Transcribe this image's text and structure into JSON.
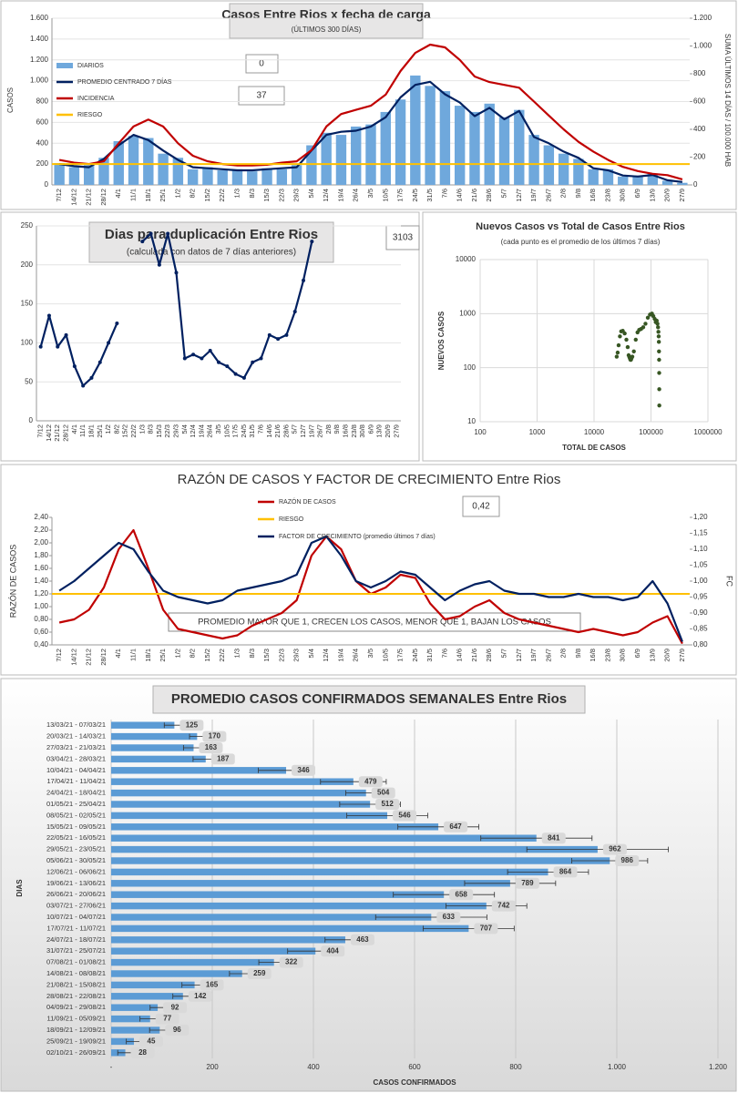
{
  "chart_data": [
    {
      "type": "combo",
      "title": "Casos Entre Rios x fecha de carga",
      "subtitle": "(ÚLTIMOS 300 DÍAS)",
      "ylabel": "CASOS",
      "y2label": "SUMA ÚLTIMOS 14 DÍAS / 100.000 HAB",
      "annotations": [
        "0",
        "37"
      ],
      "grid": true,
      "categories": [
        "7/12",
        "14/12",
        "21/12",
        "28/12",
        "4/1",
        "11/1",
        "18/1",
        "25/1",
        "1/2",
        "8/2",
        "15/2",
        "22/2",
        "1/3",
        "8/3",
        "15/3",
        "22/3",
        "29/3",
        "5/4",
        "12/4",
        "19/4",
        "26/4",
        "3/5",
        "10/5",
        "17/5",
        "24/5",
        "31/5",
        "7/6",
        "14/6",
        "21/6",
        "28/6",
        "5/7",
        "12/7",
        "19/7",
        "26/7",
        "2/8",
        "9/8",
        "16/8",
        "23/8",
        "30/8",
        "6/9",
        "13/9",
        "20/9",
        "27/9"
      ],
      "ylim": [
        0,
        1600
      ],
      "yticks": [
        0,
        200,
        400,
        600,
        800,
        {
          "value": 1000,
          "label": "1.000"
        },
        {
          "value": 1200,
          "label": "1.200"
        },
        {
          "value": 1400,
          "label": "1.400"
        },
        {
          "value": 1600,
          "label": "1.600"
        }
      ],
      "y2lim": [
        0,
        1200
      ],
      "y2ticks": [
        0,
        200,
        400,
        600,
        800,
        {
          "value": 1000,
          "label": "1.000"
        },
        {
          "value": 1200,
          "label": "1.200"
        }
      ],
      "series": [
        {
          "name": "DIARIOS",
          "kind": "bar",
          "color": "#6fa8dc",
          "values": [
            210,
            170,
            190,
            260,
            420,
            470,
            450,
            300,
            260,
            150,
            170,
            140,
            150,
            130,
            160,
            150,
            190,
            380,
            500,
            480,
            560,
            580,
            700,
            820,
            1050,
            950,
            900,
            760,
            700,
            780,
            650,
            720,
            480,
            380,
            300,
            250,
            150,
            150,
            80,
            90,
            110,
            40,
            20
          ]
        },
        {
          "name": "PROMEDIO CENTRADO 7 DÍAS",
          "color": "#002060",
          "values": [
            200,
            180,
            170,
            250,
            380,
            480,
            430,
            330,
            240,
            170,
            160,
            150,
            140,
            140,
            150,
            160,
            170,
            330,
            480,
            510,
            520,
            560,
            650,
            840,
            960,
            990,
            870,
            790,
            660,
            740,
            630,
            710,
            460,
            400,
            320,
            260,
            160,
            140,
            90,
            80,
            95,
            45,
            28
          ]
        },
        {
          "name": "INCIDENCIA",
          "color": "#c00000",
          "axis": "y2",
          "values": [
            180,
            160,
            150,
            170,
            300,
            420,
            470,
            420,
            300,
            210,
            170,
            150,
            140,
            140,
            145,
            160,
            170,
            250,
            420,
            510,
            540,
            570,
            650,
            820,
            950,
            1010,
            990,
            900,
            780,
            740,
            720,
            700,
            600,
            500,
            400,
            310,
            240,
            180,
            130,
            100,
            80,
            70,
            40
          ]
        },
        {
          "name": "RIESGO",
          "color": "#ffc000",
          "axis": "y2",
          "value": 150
        }
      ]
    },
    {
      "type": "line",
      "title": "Dias para duplicación Entre Rios",
      "subtitle": "(calculada con datos de 7 días anteriores)",
      "annotations": [
        "3103"
      ],
      "grid": true,
      "markers": true,
      "categories": [
        "7/12",
        "14/12",
        "21/12",
        "28/12",
        "4/1",
        "11/1",
        "18/1",
        "25/1",
        "1/2",
        "8/2",
        "15/2",
        "22/2",
        "1/3",
        "8/3",
        "15/3",
        "22/3",
        "29/3",
        "5/4",
        "12/4",
        "19/4",
        "26/4",
        "3/5",
        "10/5",
        "17/5",
        "24/5",
        "31/5",
        "7/6",
        "14/6",
        "21/6",
        "28/6",
        "5/7",
        "12/7",
        "19/7",
        "26/7",
        "2/8",
        "9/8",
        "16/8",
        "23/8",
        "30/8",
        "6/9",
        "13/9",
        "20/9",
        "27/9"
      ],
      "ylim": [
        0,
        250
      ],
      "yticks": [
        0,
        50,
        100,
        150,
        200,
        250
      ],
      "series": [
        {
          "color": "#002060",
          "values": [
            95,
            135,
            95,
            110,
            70,
            45,
            55,
            75,
            100,
            125,
            null,
            null,
            230,
            240,
            200,
            240,
            190,
            80,
            85,
            80,
            90,
            75,
            70,
            60,
            55,
            75,
            80,
            110,
            105,
            110,
            140,
            180,
            230,
            null,
            null,
            null,
            null,
            null,
            null,
            null,
            null,
            null,
            null
          ]
        }
      ]
    },
    {
      "type": "scatter",
      "title": "Nuevos Casos vs Total de Casos Entre Rios",
      "subtitle": "(cada punto es el promedio de los últimos 7 días)",
      "xlabel": "TOTAL DE CASOS",
      "ylabel": "NUEVOS CASOS",
      "log_x": true,
      "log_y": true,
      "grid": true,
      "color": "#375623",
      "xlim": [
        100,
        1000000
      ],
      "xticks": [
        100,
        1000,
        10000,
        100000,
        1000000
      ],
      "ylim": [
        10,
        10000
      ],
      "yticks": [
        10,
        100,
        1000,
        10000
      ],
      "x": [
        25000,
        26000,
        27000,
        28500,
        30000,
        32000,
        34500,
        37000,
        39000,
        40500,
        41500,
        42500,
        43500,
        44500,
        45500,
        47000,
        50000,
        54000,
        58000,
        62000,
        67000,
        73000,
        80000,
        88000,
        96000,
        104000,
        110000,
        116000,
        121000,
        126000,
        130000,
        133000,
        135000,
        136500,
        137500,
        138200,
        138800,
        139300,
        139700,
        140000
      ],
      "values": [
        160,
        190,
        260,
        380,
        470,
        480,
        430,
        330,
        240,
        170,
        160,
        150,
        140,
        140,
        150,
        160,
        200,
        330,
        450,
        500,
        520,
        560,
        650,
        840,
        960,
        1000,
        900,
        800,
        700,
        740,
        650,
        560,
        460,
        380,
        300,
        200,
        140,
        80,
        40,
        20
      ]
    },
    {
      "type": "combo",
      "title": "RAZÓN DE CASOS Y FACTOR DE CRECIMIENTO Entre Rios",
      "ylabel": "RAZÓN DE CASOS",
      "y2label": "FC",
      "annotations": [
        "0,42",
        "PROMEDIO MAYOR QUE 1, CRECEN LOS CASOS, MENOR QUE 1, BAJAN LOS CASOS"
      ],
      "grid": false,
      "categories": [
        "7/12",
        "14/12",
        "21/12",
        "28/12",
        "4/1",
        "11/1",
        "18/1",
        "25/1",
        "1/2",
        "8/2",
        "15/2",
        "22/2",
        "1/3",
        "8/3",
        "15/3",
        "22/3",
        "29/3",
        "5/4",
        "12/4",
        "19/4",
        "26/4",
        "3/5",
        "10/5",
        "17/5",
        "24/5",
        "31/5",
        "7/6",
        "14/6",
        "21/6",
        "28/6",
        "5/7",
        "12/7",
        "19/7",
        "26/7",
        "2/8",
        "9/8",
        "16/8",
        "23/8",
        "30/8",
        "6/9",
        "13/9",
        "20/9",
        "27/9"
      ],
      "ylim": [
        0.4,
        2.4
      ],
      "yticks": [
        {
          "value": 0.4,
          "label": "0,40"
        },
        {
          "value": 0.6,
          "label": "0,60"
        },
        {
          "value": 0.8,
          "label": "0,80"
        },
        {
          "value": 1.0,
          "label": "1,00"
        },
        {
          "value": 1.2,
          "label": "1,20"
        },
        {
          "value": 1.4,
          "label": "1,40"
        },
        {
          "value": 1.6,
          "label": "1,60"
        },
        {
          "value": 1.8,
          "label": "1,80"
        },
        {
          "value": 2.0,
          "label": "2,00"
        },
        {
          "value": 2.2,
          "label": "2,20"
        },
        {
          "value": 2.4,
          "label": "2,40"
        }
      ],
      "y2lim": [
        0.8,
        1.2
      ],
      "y2ticks": [
        {
          "value": 0.8,
          "label": "0,80"
        },
        {
          "value": 0.85,
          "label": "0,85"
        },
        {
          "value": 0.9,
          "label": "0,90"
        },
        {
          "value": 0.95,
          "label": "0,95"
        },
        {
          "value": 1.0,
          "label": "1,00"
        },
        {
          "value": 1.05,
          "label": "1,05"
        },
        {
          "value": 1.1,
          "label": "1,10"
        },
        {
          "value": 1.15,
          "label": "1,15"
        },
        {
          "value": 1.2,
          "label": "1,20"
        }
      ],
      "series": [
        {
          "name": "RAZÓN DE CASOS",
          "color": "#c00000",
          "values": [
            0.75,
            0.8,
            0.95,
            1.3,
            1.9,
            2.2,
            1.6,
            0.95,
            0.65,
            0.6,
            0.55,
            0.5,
            0.55,
            0.7,
            0.8,
            0.9,
            1.1,
            1.8,
            2.1,
            1.9,
            1.4,
            1.2,
            1.3,
            1.5,
            1.45,
            1.05,
            0.8,
            0.85,
            1.0,
            1.1,
            0.9,
            0.8,
            0.75,
            0.7,
            0.65,
            0.6,
            0.65,
            0.6,
            0.55,
            0.6,
            0.75,
            0.85,
            0.42
          ]
        },
        {
          "name": "RIESGO",
          "color": "#ffc000",
          "value": 1.2
        },
        {
          "name": "FACTOR DE CRECIMIENTO (promedio últimos 7 días)",
          "color": "#002060",
          "axis": "y2",
          "values": [
            0.97,
            1.0,
            1.04,
            1.08,
            1.12,
            1.1,
            1.03,
            0.97,
            0.95,
            0.94,
            0.93,
            0.94,
            0.97,
            0.98,
            0.99,
            1.0,
            1.02,
            1.12,
            1.14,
            1.08,
            1.0,
            0.98,
            1.0,
            1.03,
            1.02,
            0.98,
            0.94,
            0.97,
            0.99,
            1.0,
            0.97,
            0.96,
            0.96,
            0.95,
            0.95,
            0.96,
            0.95,
            0.95,
            0.94,
            0.95,
            1.0,
            0.93,
            0.81
          ]
        }
      ]
    },
    {
      "type": "hbar",
      "title": "PROMEDIO CASOS CONFIRMADOS SEMANALES Entre Rios",
      "ylabel": "DIAS",
      "xlabel": "CASOS CONFIRMADOS",
      "grid": true,
      "color": "#5b9bd5",
      "error_color": "#333333",
      "xlim": [
        0,
        1200
      ],
      "xticks": [
        {
          "value": 0,
          "label": "-"
        },
        200,
        400,
        600,
        800,
        {
          "value": 1000,
          "label": "1.000"
        },
        {
          "value": 1200,
          "label": "1.200"
        }
      ],
      "categories": [
        "13/03/21 - 07/03/21",
        "20/03/21 - 14/03/21",
        "27/03/21 - 21/03/21",
        "03/04/21 - 28/03/21",
        "10/04/21 - 04/04/21",
        "17/04/21 - 11/04/21",
        "24/04/21 - 18/04/21",
        "01/05/21 - 25/04/21",
        "08/05/21 - 02/05/21",
        "15/05/21 - 09/05/21",
        "22/05/21 - 16/05/21",
        "29/05/21 - 23/05/21",
        "05/06/21 - 30/05/21",
        "12/06/21 - 06/06/21",
        "19/06/21 - 13/06/21",
        "26/06/21 - 20/06/21",
        "03/07/21 - 27/06/21",
        "10/07/21 - 04/07/21",
        "17/07/21 - 11/07/21",
        "24/07/21 - 18/07/21",
        "31/07/21 - 25/07/21",
        "07/08/21 - 01/08/21",
        "14/08/21 - 08/08/21",
        "21/08/21 - 15/08/21",
        "28/08/21 - 22/08/21",
        "04/09/21 - 29/08/21",
        "11/09/21 - 05/09/21",
        "18/09/21 - 12/09/21",
        "25/09/21 - 19/09/21",
        "02/10/21 - 26/09/21"
      ],
      "values": [
        125,
        170,
        163,
        187,
        346,
        479,
        504,
        512,
        546,
        647,
        841,
        962,
        986,
        864,
        789,
        658,
        742,
        633,
        707,
        463,
        404,
        322,
        259,
        165,
        142,
        92,
        77,
        96,
        45,
        28
      ],
      "errors": [
        20,
        15,
        20,
        25,
        55,
        65,
        40,
        60,
        80,
        80,
        110,
        140,
        75,
        80,
        90,
        100,
        80,
        110,
        90,
        40,
        55,
        30,
        25,
        25,
        20,
        15,
        20,
        20,
        15,
        15
      ]
    }
  ]
}
